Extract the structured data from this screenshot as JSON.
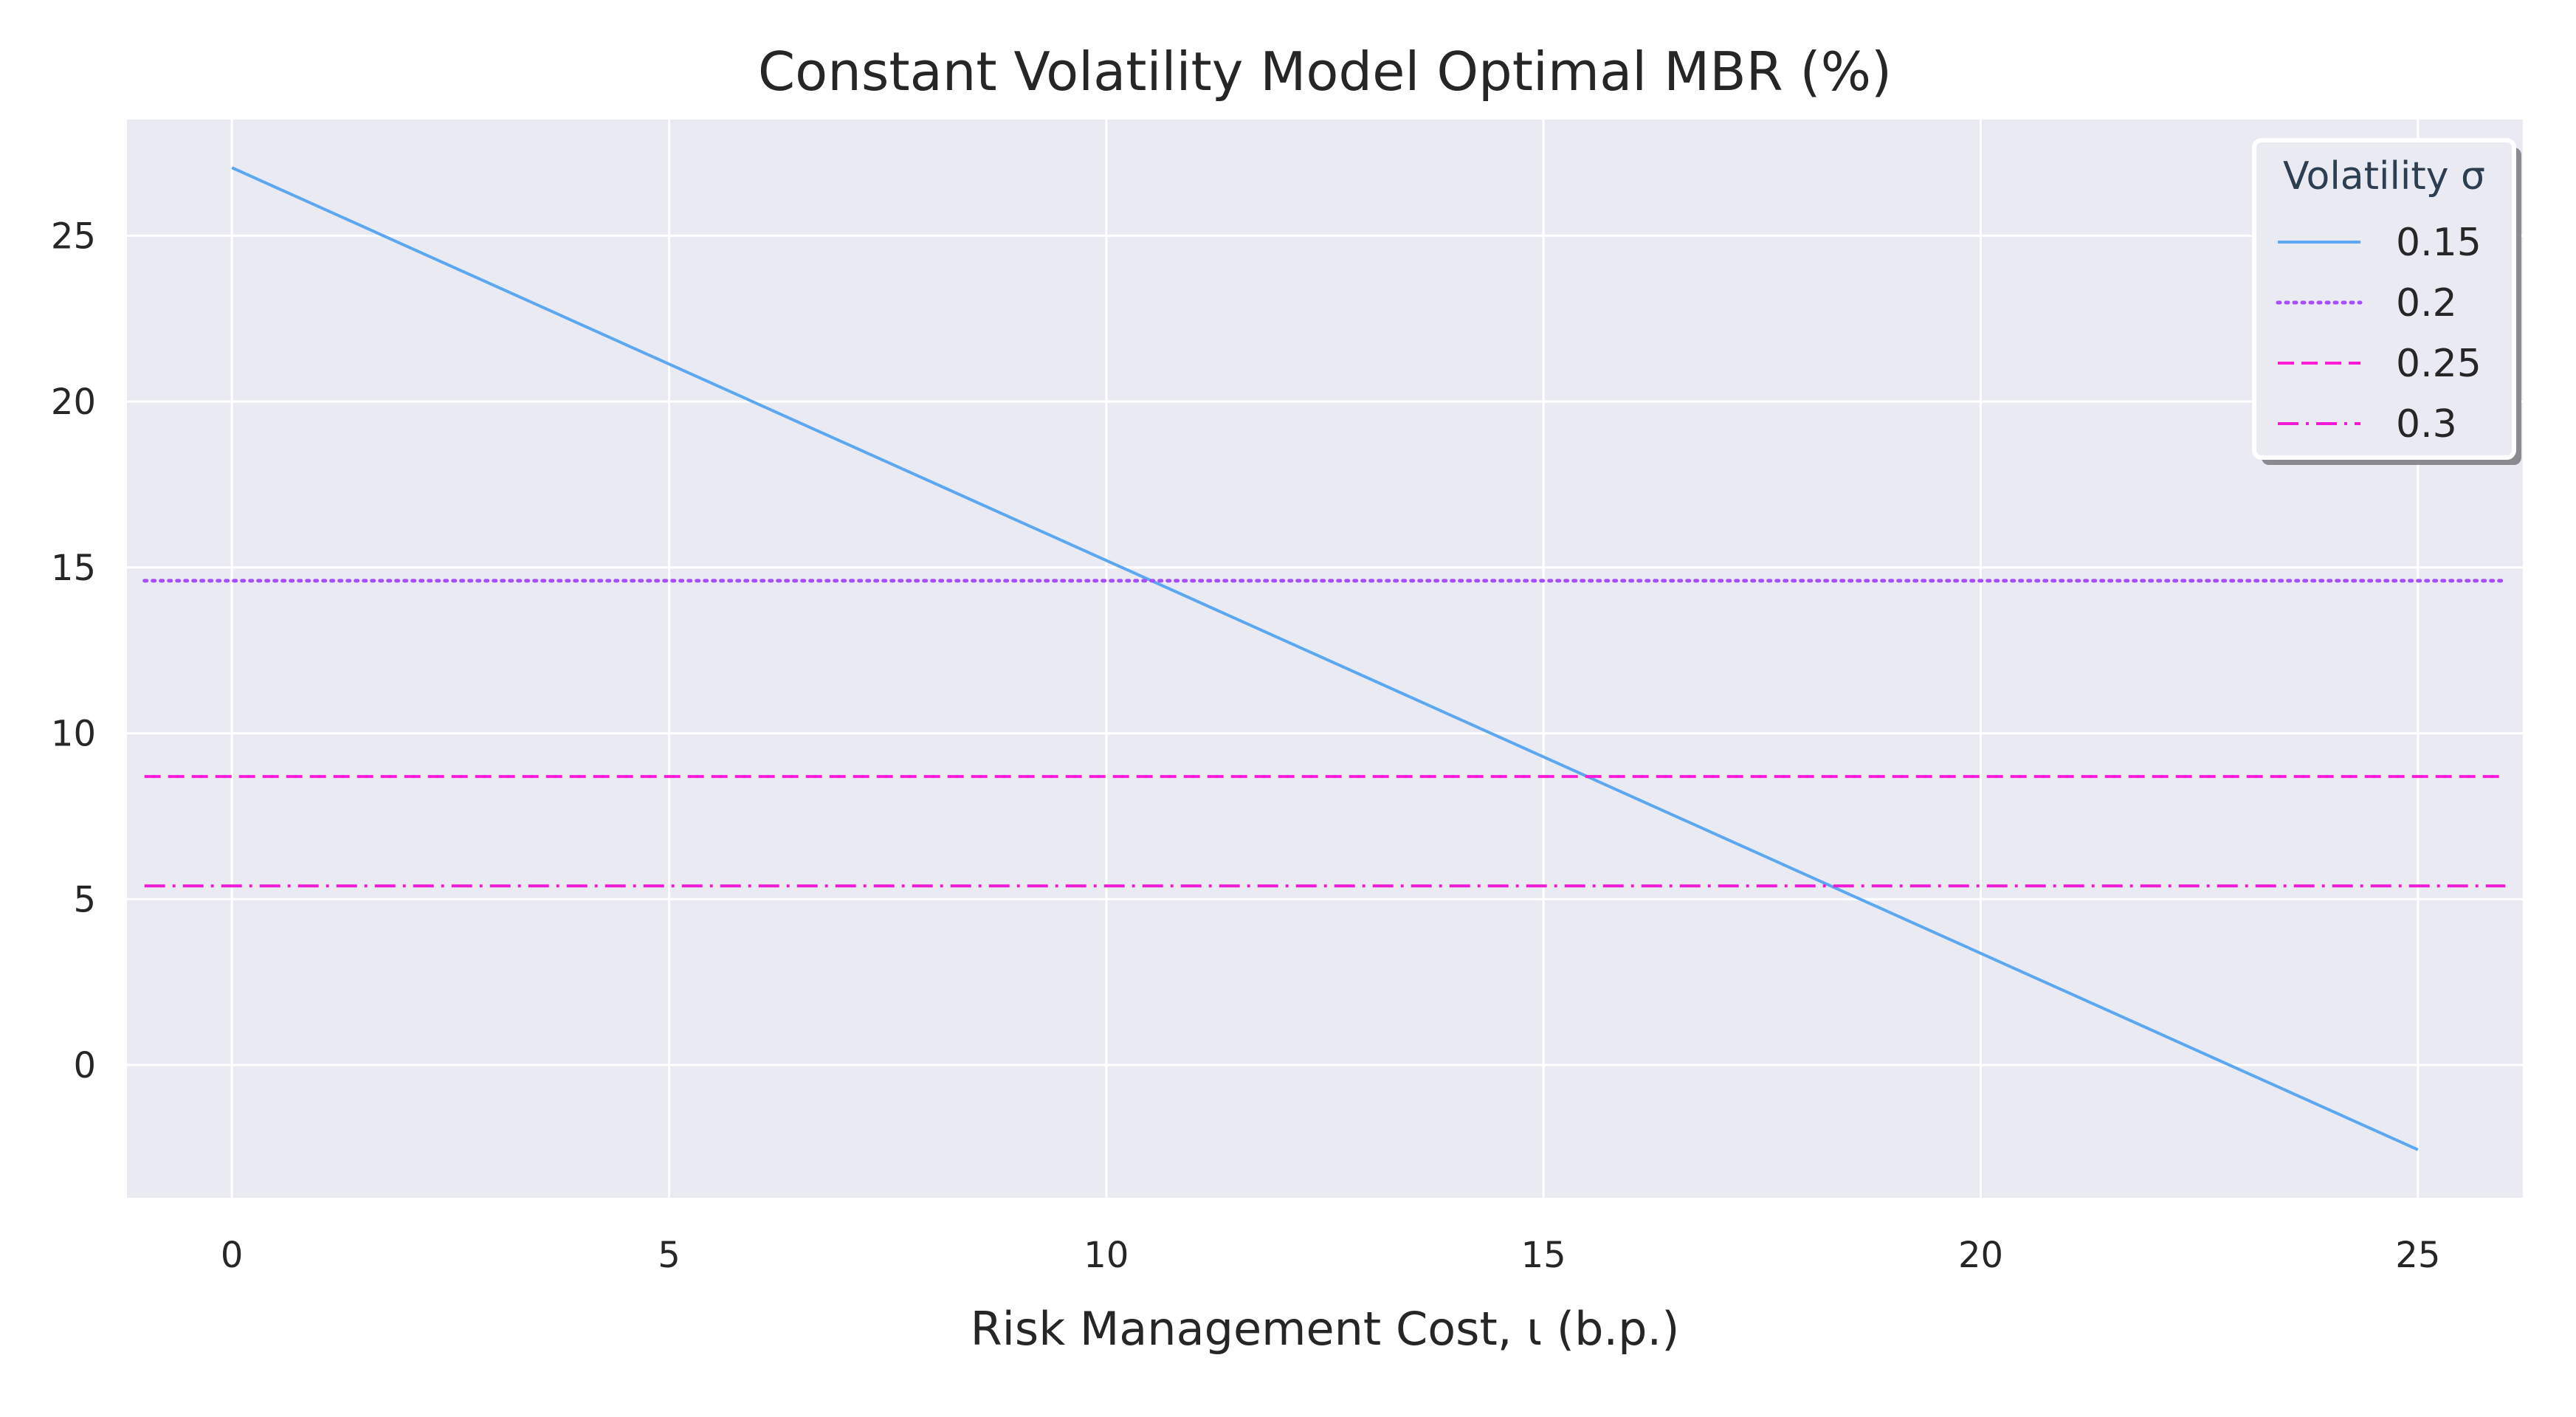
{
  "chart_data": {
    "type": "line",
    "title": "Constant Volatility Model Optimal MBR (%)",
    "xlabel": "Risk Management Cost, ι (b.p.)",
    "ylabel": "",
    "xlim": [
      -1.2,
      26.2
    ],
    "ylim": [
      -4.0,
      28.5
    ],
    "xticks": [
      0,
      5,
      10,
      15,
      20,
      25
    ],
    "yticks": [
      0,
      5,
      10,
      15,
      20,
      25
    ],
    "grid": true,
    "legend": {
      "title": "Volatility σ",
      "placement": "top-right"
    },
    "colors": {
      "plot_background": "#eaeaf2",
      "grid": "#ffffff",
      "text": "#262626"
    },
    "series": [
      {
        "name": "0.15",
        "color": "#5aa7f2",
        "linestyle": "solid",
        "x": [
          0,
          25
        ],
        "y": [
          27.05,
          -2.55
        ]
      },
      {
        "name": "0.2",
        "color": "#a64dff",
        "linestyle": "dotted",
        "x": [
          -1,
          26
        ],
        "y": [
          14.6,
          14.6
        ]
      },
      {
        "name": "0.25",
        "color": "#ff1ad9",
        "linestyle": "dashed",
        "x": [
          -1,
          26
        ],
        "y": [
          8.7,
          8.7
        ]
      },
      {
        "name": "0.3",
        "color": "#f01ad4",
        "linestyle": "dashdot",
        "x": [
          -1,
          26
        ],
        "y": [
          5.4,
          5.4
        ]
      }
    ]
  }
}
